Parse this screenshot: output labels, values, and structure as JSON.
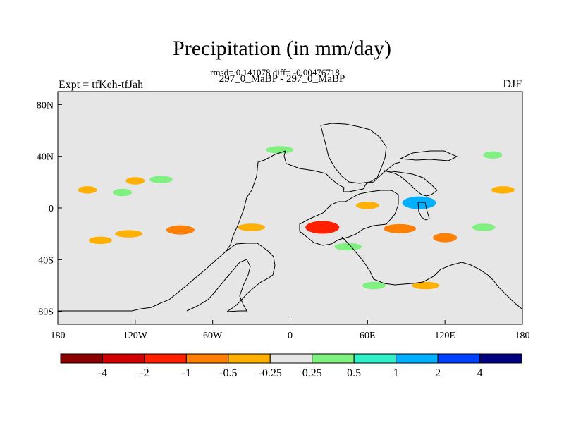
{
  "header": {
    "title": "Precipitation (in mm/day)",
    "stats": "rmsd= 0.141078 diff= -0.00476718",
    "comparison": "297_0_MaBP - 297_0_MaBP",
    "experiment": "Expt = tfKeh-tfJah",
    "season": "DJF"
  },
  "chart_data": {
    "type": "heatmap",
    "title": "Precipitation (in mm/day)",
    "map": "global difference map",
    "x_range": [
      -180,
      180
    ],
    "y_range": [
      -90,
      90
    ],
    "x_tick_labels": [
      "180",
      "120W",
      "60W",
      "0",
      "60E",
      "120E",
      "180"
    ],
    "y_tick_labels": [
      "80N",
      "40N",
      "0",
      "40S",
      "80S"
    ],
    "colorbar": {
      "levels": [
        "-4",
        "-2",
        "-1",
        "-0.5",
        "-0.25",
        "0.25",
        "0.5",
        "1",
        "2",
        "4"
      ],
      "colors": [
        "#8B0000",
        "#D00000",
        "#FF2000",
        "#FF8000",
        "#FFB000",
        "#E6E6E6",
        "#80F080",
        "#30F0C8",
        "#00B0FF",
        "#0040FF",
        "#000080"
      ]
    },
    "anomalies": [
      {
        "lon": -157,
        "lat": 14,
        "level": -0.25
      },
      {
        "lon": -147,
        "lat": -25,
        "level": -0.25
      },
      {
        "lon": -125,
        "lat": -20,
        "level": -0.25
      },
      {
        "lon": -120,
        "lat": 21,
        "level": -0.25
      },
      {
        "lon": -85,
        "lat": -17,
        "level": -0.5
      },
      {
        "lon": -30,
        "lat": -15,
        "level": -0.25
      },
      {
        "lon": 25,
        "lat": -15,
        "level": -1
      },
      {
        "lon": 60,
        "lat": 2,
        "level": -0.25
      },
      {
        "lon": 85,
        "lat": -16,
        "level": -0.5
      },
      {
        "lon": 120,
        "lat": -23,
        "level": -0.5
      },
      {
        "lon": 165,
        "lat": 14,
        "level": -0.25
      },
      {
        "lon": 105,
        "lat": -60,
        "level": -0.25
      },
      {
        "lon": 100,
        "lat": 4,
        "level": 1
      },
      {
        "lon": 150,
        "lat": -15,
        "level": 0.25
      },
      {
        "lon": 45,
        "lat": -30,
        "level": 0.25
      },
      {
        "lon": -130,
        "lat": 12,
        "level": 0.25
      },
      {
        "lon": -100,
        "lat": 22,
        "level": 0.25
      },
      {
        "lon": -8,
        "lat": 45,
        "level": 0.25
      },
      {
        "lon": 157,
        "lat": 41,
        "level": 0.25
      },
      {
        "lon": 65,
        "lat": -60,
        "level": 0.25
      }
    ]
  }
}
